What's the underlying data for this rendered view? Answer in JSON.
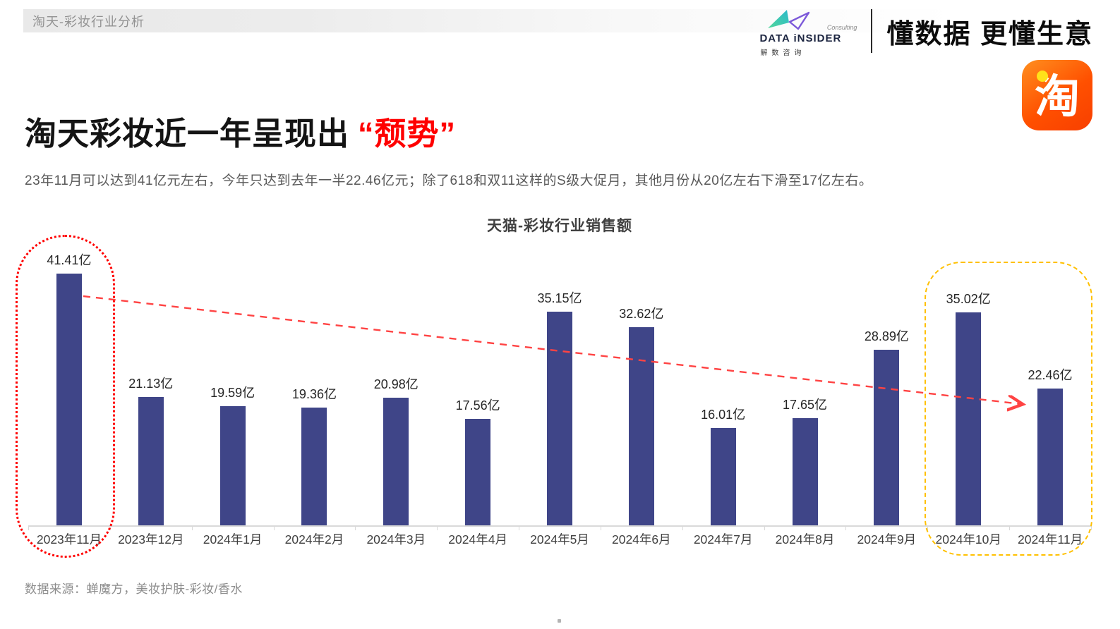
{
  "page": {
    "breadcrumb": "淘天-彩妆行业分析"
  },
  "brand": {
    "logo_name": "DATA iNSIDER",
    "logo_consulting": "Consulting",
    "logo_cn": "解数咨询",
    "slogan": "懂数据 更懂生意",
    "taobao_char": "淘"
  },
  "headline": {
    "main": "淘天彩妆近一年呈现出",
    "highlight": "“颓势”"
  },
  "subtitle": "23年11月可以达到41亿元左右，今年只达到去年一半22.46亿元；除了618和双11这样的S级大促月，其他月份从20亿左右下滑至17亿左右。",
  "source": "数据来源：蝉魔方，美妆护肤-彩妆/香水",
  "chart_data": {
    "type": "bar",
    "title": "天猫-彩妆行业销售额",
    "categories": [
      "2023年11月",
      "2023年12月",
      "2024年1月",
      "2024年2月",
      "2024年3月",
      "2024年4月",
      "2024年5月",
      "2024年6月",
      "2024年7月",
      "2024年8月",
      "2024年9月",
      "2024年10月",
      "2024年11月"
    ],
    "values": [
      41.41,
      21.13,
      19.59,
      19.36,
      20.98,
      17.56,
      35.15,
      32.62,
      16.01,
      17.65,
      28.89,
      35.02,
      22.46
    ],
    "unit": "亿",
    "xlabel": "",
    "ylabel": "",
    "ylim": [
      0,
      45
    ],
    "grid": false,
    "legend": false,
    "bar_color": "#3f4588",
    "annotations": {
      "first_bar_ring": "红色虚线圈出 2023年11月 41.41亿",
      "last_two_ring": "黄色虚线圈出 2024年10月-2024年11月",
      "trend_arrow": "红色虚线箭头：从2023年11月下滑至2024年11月"
    },
    "annotation_colors": {
      "first_bar_ring": "#ff0000",
      "last_two_ring": "#ffc000",
      "trend_arrow": "#ff4343"
    }
  }
}
